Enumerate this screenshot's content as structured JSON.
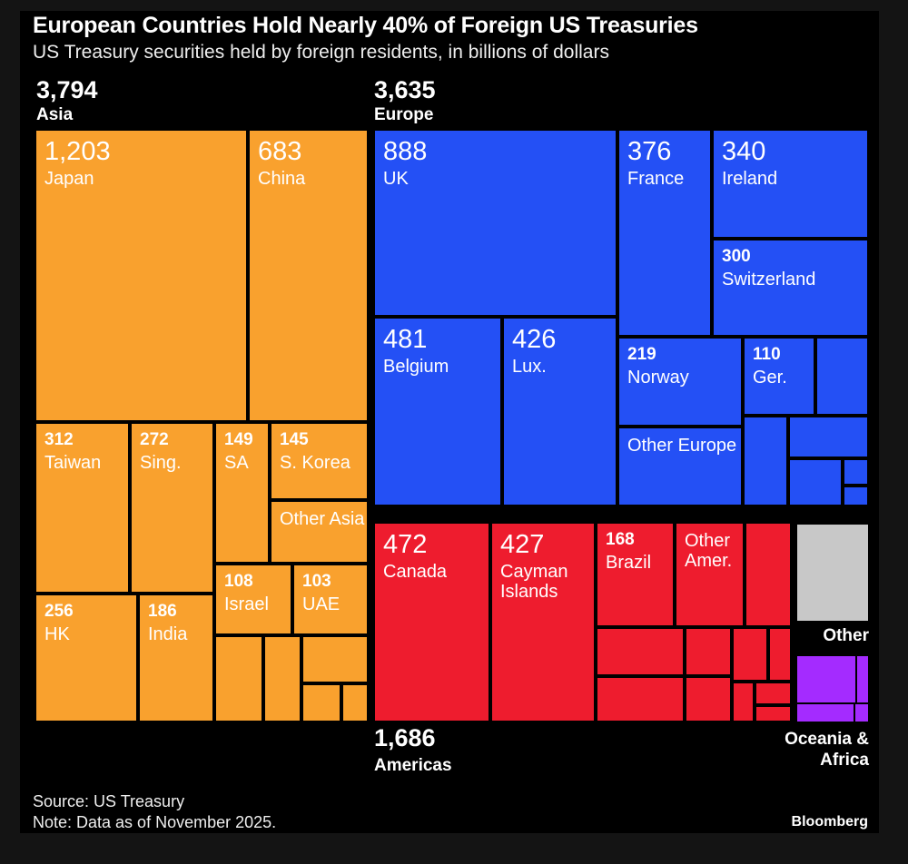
{
  "chart_data": {
    "type": "treemap",
    "title": "European Countries Hold Nearly 40% of Foreign US Treasuries",
    "subtitle": "US Treasury securities held by foreign residents, in billions of dollars",
    "colors": {
      "Asia": "#f9a12e",
      "Europe": "#2450f5",
      "Americas": "#ee1c2e",
      "Other": "#c8c8c8",
      "Oceania & Africa": "#a42bff"
    },
    "groups": [
      {
        "name": "Asia",
        "total": "3,794",
        "items": [
          {
            "label": "Japan",
            "value": "1,203"
          },
          {
            "label": "China",
            "value": "683"
          },
          {
            "label": "Taiwan",
            "value": "312"
          },
          {
            "label": "Sing.",
            "value": "272"
          },
          {
            "label": "SA",
            "value": "149"
          },
          {
            "label": "S. Korea",
            "value": "145"
          },
          {
            "label": "Other Asia",
            "value": ""
          },
          {
            "label": "HK",
            "value": "256"
          },
          {
            "label": "India",
            "value": "186"
          },
          {
            "label": "Israel",
            "value": "108"
          },
          {
            "label": "UAE",
            "value": "103"
          }
        ]
      },
      {
        "name": "Europe",
        "total": "3,635",
        "items": [
          {
            "label": "UK",
            "value": "888"
          },
          {
            "label": "France",
            "value": "376"
          },
          {
            "label": "Ireland",
            "value": "340"
          },
          {
            "label": "Switzerland",
            "value": "300"
          },
          {
            "label": "Belgium",
            "value": "481"
          },
          {
            "label": "Lux.",
            "value": "426"
          },
          {
            "label": "Norway",
            "value": "219"
          },
          {
            "label": "Ger.",
            "value": "110"
          },
          {
            "label": "Other Europe",
            "value": ""
          }
        ]
      },
      {
        "name": "Americas",
        "total": "1,686",
        "items": [
          {
            "label": "Canada",
            "value": "472"
          },
          {
            "label": "Cayman Islands",
            "value": "427"
          },
          {
            "label": "Brazil",
            "value": "168"
          },
          {
            "label": "Other Amer.",
            "value": ""
          }
        ]
      },
      {
        "name": "Other",
        "total": "",
        "items": []
      },
      {
        "name": "Oceania & Africa",
        "total": "",
        "items": []
      }
    ]
  },
  "footer": {
    "source": "Source: US Treasury",
    "note": "Note: Data as of November 2025.",
    "brand": "Bloomberg"
  }
}
